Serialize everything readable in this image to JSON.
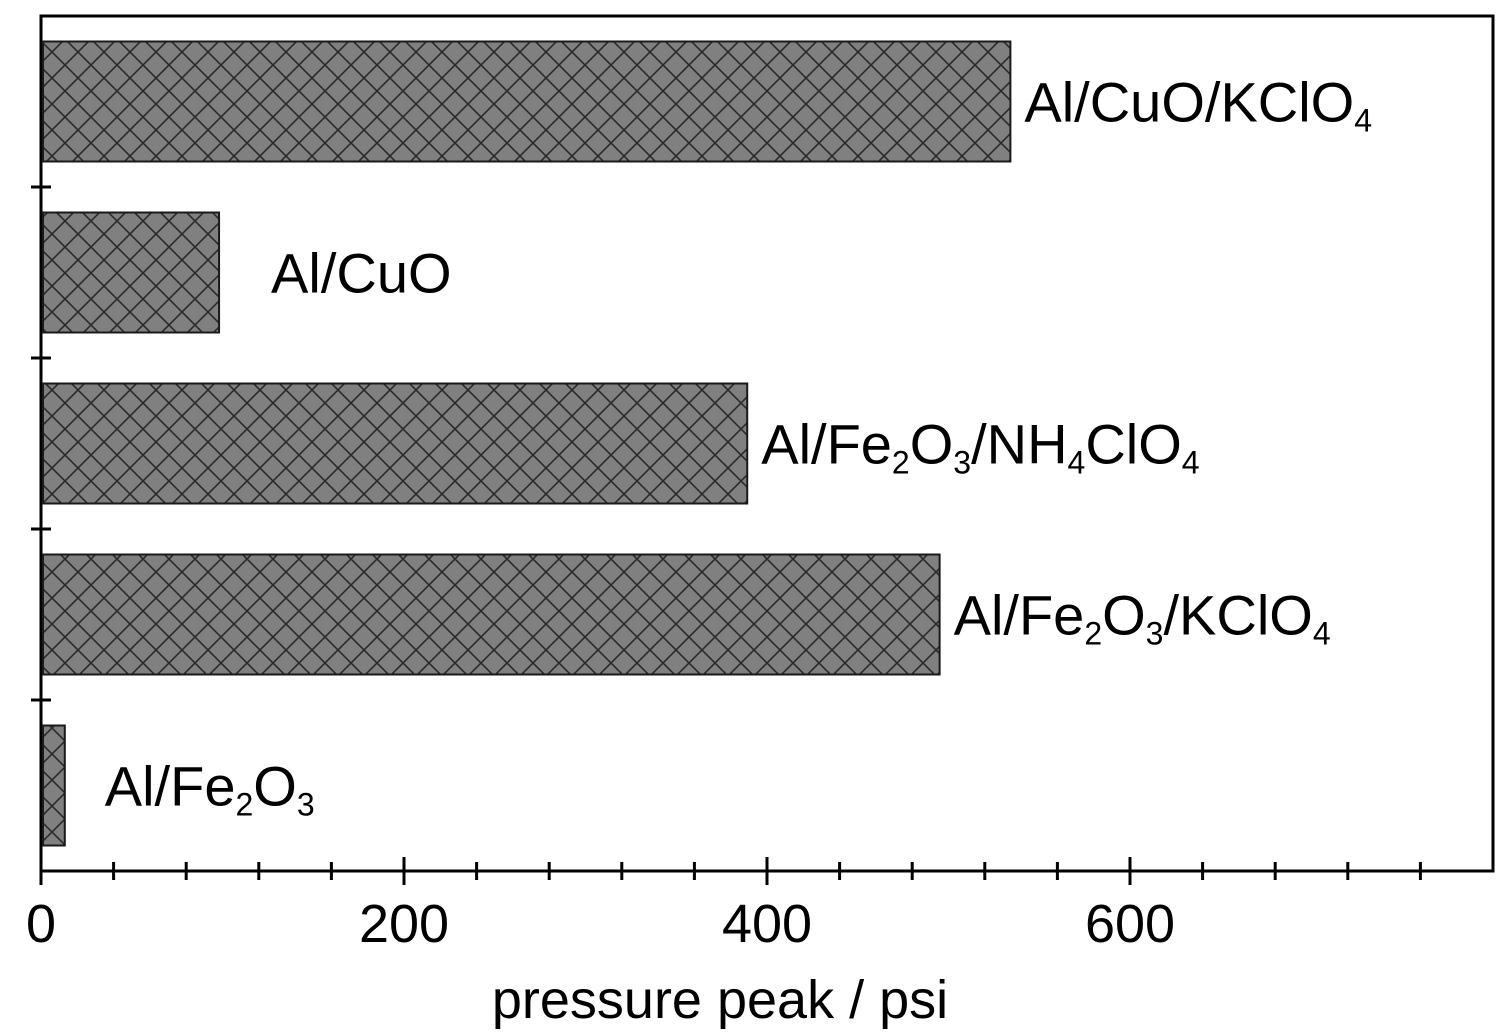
{
  "chart_data": {
    "type": "bar",
    "orientation": "horizontal",
    "title": "",
    "xlabel": "pressure  peak / psi",
    "ylabel": "",
    "xlim": [
      0,
      800
    ],
    "x_ticks": [
      0,
      200,
      400,
      600
    ],
    "x_tick_labels": [
      "0",
      "200",
      "400",
      "600"
    ],
    "x_minor_tick_step": 40,
    "grid": false,
    "legend": "none",
    "categories": [
      {
        "label": "Al/CuO/KClO4",
        "value": 533,
        "label_segments": [
          {
            "text": "Al/CuO/KClO",
            "sub": false
          },
          {
            "text": "4",
            "sub": true
          }
        ]
      },
      {
        "label": "Al/CuO",
        "value": 97,
        "label_segments": [
          {
            "text": "Al/CuO",
            "sub": false
          }
        ]
      },
      {
        "label": "Al/Fe2O3/NH4ClO4",
        "value": 388,
        "label_segments": [
          {
            "text": "Al/Fe",
            "sub": false
          },
          {
            "text": "2",
            "sub": true
          },
          {
            "text": "O",
            "sub": false
          },
          {
            "text": "3",
            "sub": true
          },
          {
            "text": "/NH",
            "sub": false
          },
          {
            "text": "4",
            "sub": true
          },
          {
            "text": "ClO",
            "sub": false
          },
          {
            "text": "4",
            "sub": true
          }
        ]
      },
      {
        "label": "Al/Fe2O3/KClO4",
        "value": 494,
        "label_segments": [
          {
            "text": "Al/Fe",
            "sub": false
          },
          {
            "text": "2",
            "sub": true
          },
          {
            "text": "O",
            "sub": false
          },
          {
            "text": "3",
            "sub": true
          },
          {
            "text": "/KClO",
            "sub": false
          },
          {
            "text": "4",
            "sub": true
          }
        ]
      },
      {
        "label": "Al/Fe2O3",
        "value": 12,
        "label_segments": [
          {
            "text": "Al/Fe",
            "sub": false
          },
          {
            "text": "2",
            "sub": true
          },
          {
            "text": "O",
            "sub": false
          },
          {
            "text": "3",
            "sub": true
          }
        ]
      }
    ],
    "colors": {
      "bar_fill": "#808080",
      "hatch": "#2a2a2a",
      "bar_stroke": "#1a1a1a",
      "axis": "#000000",
      "text": "#000000"
    },
    "bar_pattern": "crosshatch"
  }
}
